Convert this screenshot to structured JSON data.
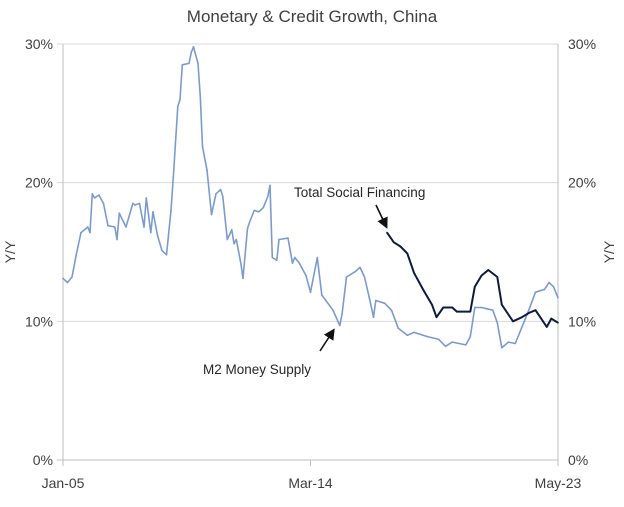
{
  "chart_data": {
    "type": "line",
    "title": "Monetary & Credit Growth, China",
    "ylabel_left": "Y/Y",
    "ylabel_right": "Y/Y",
    "ylim": [
      0,
      30
    ],
    "yticks": [
      "0%",
      "10%",
      "20%",
      "30%"
    ],
    "yticks_right": [
      "0%",
      "10%",
      "20%",
      "30%"
    ],
    "xlim": [
      "2005-01",
      "2023-05"
    ],
    "xticks": [
      {
        "date": "2005-01",
        "label": "Jan-05"
      },
      {
        "date": "2014-03",
        "label": "Mar-14"
      },
      {
        "date": "2023-05",
        "label": "May-23"
      }
    ],
    "grid": true,
    "colors": {
      "m2": "#7b9bcf",
      "tsf": "#0d1b3e",
      "grid": "#d9d9d9"
    },
    "series": [
      {
        "name": "M2 Money Supply",
        "points": [
          [
            "2005-01",
            13.1
          ],
          [
            "2005-03",
            12.8
          ],
          [
            "2005-05",
            13.2
          ],
          [
            "2005-07",
            14.9
          ],
          [
            "2005-09",
            16.4
          ],
          [
            "2005-12",
            16.8
          ],
          [
            "2006-01",
            16.4
          ],
          [
            "2006-02",
            19.2
          ],
          [
            "2006-03",
            18.9
          ],
          [
            "2006-05",
            19.1
          ],
          [
            "2006-07",
            18.5
          ],
          [
            "2006-09",
            16.9
          ],
          [
            "2006-12",
            16.8
          ],
          [
            "2007-01",
            15.9
          ],
          [
            "2007-02",
            17.8
          ],
          [
            "2007-05",
            16.8
          ],
          [
            "2007-08",
            18.5
          ],
          [
            "2007-09",
            18.4
          ],
          [
            "2007-11",
            18.5
          ],
          [
            "2008-01",
            16.8
          ],
          [
            "2008-02",
            18.9
          ],
          [
            "2008-04",
            16.4
          ],
          [
            "2008-05",
            17.9
          ],
          [
            "2008-07",
            16.2
          ],
          [
            "2008-09",
            15.1
          ],
          [
            "2008-11",
            14.8
          ],
          [
            "2009-01",
            18.0
          ],
          [
            "2009-02",
            20.4
          ],
          [
            "2009-04",
            25.5
          ],
          [
            "2009-05",
            26.0
          ],
          [
            "2009-06",
            28.5
          ],
          [
            "2009-09",
            28.6
          ],
          [
            "2009-10",
            29.4
          ],
          [
            "2009-11",
            29.8
          ],
          [
            "2010-01",
            28.6
          ],
          [
            "2010-02",
            26.2
          ],
          [
            "2010-03",
            22.6
          ],
          [
            "2010-05",
            20.9
          ],
          [
            "2010-07",
            17.7
          ],
          [
            "2010-09",
            19.2
          ],
          [
            "2010-11",
            19.5
          ],
          [
            "2010-12",
            19.0
          ],
          [
            "2011-02",
            15.9
          ],
          [
            "2011-04",
            16.6
          ],
          [
            "2011-05",
            15.6
          ],
          [
            "2011-06",
            15.9
          ],
          [
            "2011-08",
            14.2
          ],
          [
            "2011-09",
            13.1
          ],
          [
            "2011-11",
            16.7
          ],
          [
            "2011-12",
            17.2
          ],
          [
            "2012-02",
            18.0
          ],
          [
            "2012-04",
            17.9
          ],
          [
            "2012-06",
            18.2
          ],
          [
            "2012-08",
            19.0
          ],
          [
            "2012-09",
            19.8
          ],
          [
            "2012-10",
            14.6
          ],
          [
            "2012-12",
            14.4
          ],
          [
            "2013-01",
            15.9
          ],
          [
            "2013-05",
            16.0
          ],
          [
            "2013-07",
            14.2
          ],
          [
            "2013-08",
            14.6
          ],
          [
            "2013-10",
            14.2
          ],
          [
            "2014-01",
            13.3
          ],
          [
            "2014-03",
            12.1
          ],
          [
            "2014-06",
            14.6
          ],
          [
            "2014-08",
            11.9
          ],
          [
            "2015-01",
            10.8
          ],
          [
            "2015-04",
            9.7
          ],
          [
            "2015-05",
            10.5
          ],
          [
            "2015-07",
            13.2
          ],
          [
            "2015-11",
            13.6
          ],
          [
            "2016-01",
            13.9
          ],
          [
            "2016-03",
            13.2
          ],
          [
            "2016-05",
            11.8
          ],
          [
            "2016-07",
            10.3
          ],
          [
            "2016-08",
            11.5
          ],
          [
            "2016-12",
            11.3
          ],
          [
            "2017-03",
            10.8
          ],
          [
            "2017-06",
            9.5
          ],
          [
            "2017-10",
            9.0
          ],
          [
            "2018-01",
            9.2
          ],
          [
            "2018-07",
            8.9
          ],
          [
            "2018-12",
            8.7
          ],
          [
            "2019-03",
            8.2
          ],
          [
            "2019-06",
            8.5
          ],
          [
            "2019-12",
            8.3
          ],
          [
            "2020-02",
            8.9
          ],
          [
            "2020-04",
            11.0
          ],
          [
            "2020-07",
            11.0
          ],
          [
            "2020-12",
            10.8
          ],
          [
            "2021-02",
            9.9
          ],
          [
            "2021-04",
            8.1
          ],
          [
            "2021-07",
            8.5
          ],
          [
            "2021-10",
            8.4
          ],
          [
            "2022-01",
            9.6
          ],
          [
            "2022-04",
            10.8
          ],
          [
            "2022-07",
            12.1
          ],
          [
            "2022-11",
            12.3
          ],
          [
            "2023-01",
            12.8
          ],
          [
            "2023-03",
            12.5
          ],
          [
            "2023-05",
            11.7
          ]
        ]
      },
      {
        "name": "Total Social Financing",
        "points": [
          [
            "2017-01",
            16.4
          ],
          [
            "2017-04",
            15.7
          ],
          [
            "2017-07",
            15.4
          ],
          [
            "2017-10",
            14.9
          ],
          [
            "2018-01",
            13.5
          ],
          [
            "2018-05",
            12.3
          ],
          [
            "2018-09",
            11.2
          ],
          [
            "2018-11",
            10.3
          ],
          [
            "2019-02",
            11.0
          ],
          [
            "2019-06",
            11.0
          ],
          [
            "2019-08",
            10.7
          ],
          [
            "2020-02",
            10.7
          ],
          [
            "2020-04",
            12.5
          ],
          [
            "2020-07",
            13.3
          ],
          [
            "2020-10",
            13.7
          ],
          [
            "2021-02",
            13.2
          ],
          [
            "2021-04",
            11.2
          ],
          [
            "2021-09",
            10.0
          ],
          [
            "2022-01",
            10.3
          ],
          [
            "2022-04",
            10.6
          ],
          [
            "2022-07",
            10.8
          ],
          [
            "2022-12",
            9.6
          ],
          [
            "2023-02",
            10.2
          ],
          [
            "2023-05",
            9.9
          ]
        ]
      }
    ],
    "annotations": [
      {
        "text": "Total Social Financing",
        "series": "Total Social Financing"
      },
      {
        "text": "M2 Money Supply",
        "series": "M2 Money Supply"
      }
    ]
  }
}
